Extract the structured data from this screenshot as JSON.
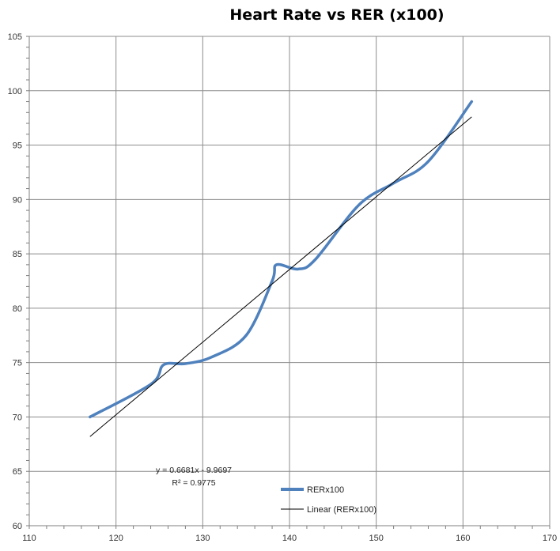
{
  "chart_data": {
    "type": "line",
    "title": "Heart Rate vs RER (x100)",
    "xlabel": "",
    "ylabel": "",
    "xlim": [
      110,
      170
    ],
    "ylim": [
      60,
      105
    ],
    "xticks": [
      110,
      120,
      130,
      140,
      150,
      160,
      170
    ],
    "yticks": [
      60,
      65,
      70,
      75,
      80,
      85,
      90,
      95,
      100,
      105
    ],
    "grid": true,
    "legend_position": "bottom-center",
    "series": [
      {
        "name": "RERx100",
        "color": "#4F81BD",
        "smooth": true,
        "x": [
          117,
          124,
          125.5,
          128,
          131,
          135,
          138,
          138.5,
          141,
          143,
          148,
          152,
          156,
          161
        ],
        "y": [
          70,
          73,
          74.8,
          74.9,
          75.5,
          77.5,
          82.5,
          84,
          83.6,
          84.5,
          89.5,
          91.5,
          93.5,
          99
        ]
      }
    ],
    "trendline": {
      "name": "Linear (RERx100)",
      "color": "#000000",
      "slope": 0.6681,
      "intercept": -9.9697,
      "x_range": [
        117,
        161
      ],
      "equation_label": "y = 0.6681x - 9.9697",
      "r2_label": "R² = 0.9775"
    }
  }
}
